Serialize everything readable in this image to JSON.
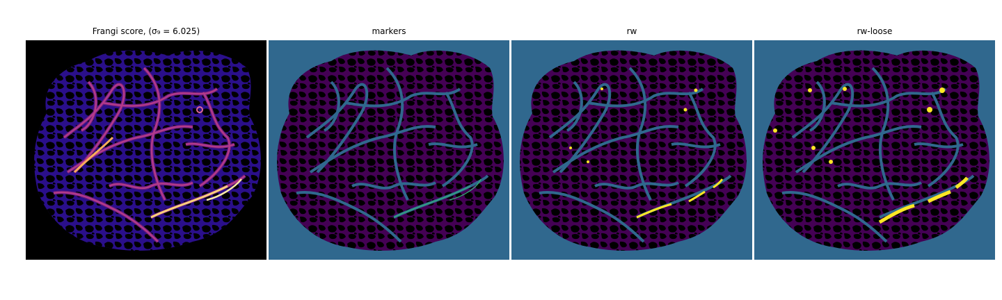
{
  "panels": [
    {
      "title": "Frangi score, (σ₉ = 6.025)",
      "content": "Frangi vesselness response heatmap (magma colormap) of blood vessel image"
    },
    {
      "title": "markers",
      "content": "Marker labels over vessel mask (viridis colormap)"
    },
    {
      "title": "rw",
      "content": "Random walker segmentation result"
    },
    {
      "title": "rw-loose",
      "content": "Random walker segmentation result with loose threshold"
    }
  ],
  "colors": {
    "frangi_bg": "#000000",
    "frangi_tissue": "#2a0f8a",
    "frangi_strong": "#fbb060",
    "viridis_bg": "#30688e",
    "viridis_dark": "#440154",
    "viridis_green": "#35b779",
    "viridis_yellow": "#fde725"
  }
}
